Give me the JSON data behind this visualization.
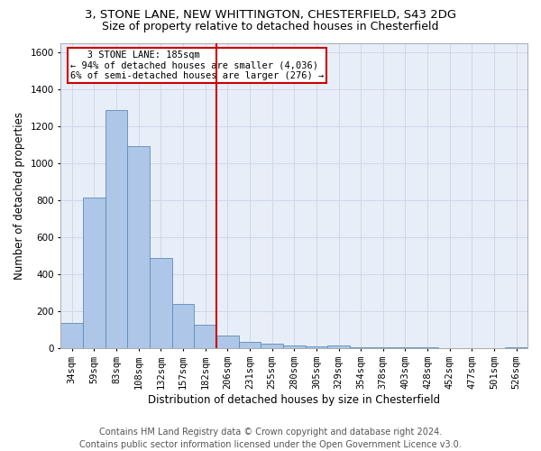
{
  "title1": "3, STONE LANE, NEW WHITTINGTON, CHESTERFIELD, S43 2DG",
  "title2": "Size of property relative to detached houses in Chesterfield",
  "xlabel": "Distribution of detached houses by size in Chesterfield",
  "ylabel": "Number of detached properties",
  "footer1": "Contains HM Land Registry data © Crown copyright and database right 2024.",
  "footer2": "Contains public sector information licensed under the Open Government Licence v3.0.",
  "annotation_line1": "   3 STONE LANE: 185sqm",
  "annotation_line2": "← 94% of detached houses are smaller (4,036)",
  "annotation_line3": "6% of semi-detached houses are larger (276) →",
  "property_size": 185,
  "bar_color": "#aec6e8",
  "bar_edge_color": "#5b8db8",
  "vline_color": "#cc0000",
  "annotation_box_color": "#cc0000",
  "bg_color": "#ffffff",
  "grid_color": "#d0d8e8",
  "ax_bg_color": "#e8eef8",
  "categories": [
    "34sqm",
    "59sqm",
    "83sqm",
    "108sqm",
    "132sqm",
    "157sqm",
    "182sqm",
    "206sqm",
    "231sqm",
    "255sqm",
    "280sqm",
    "305sqm",
    "329sqm",
    "354sqm",
    "378sqm",
    "403sqm",
    "428sqm",
    "452sqm",
    "477sqm",
    "501sqm",
    "526sqm"
  ],
  "values": [
    140,
    815,
    1285,
    1090,
    490,
    238,
    128,
    68,
    38,
    28,
    15,
    10,
    18,
    5,
    5,
    8,
    5,
    2,
    2,
    2,
    5
  ],
  "ylim": [
    0,
    1650
  ],
  "yticks": [
    0,
    200,
    400,
    600,
    800,
    1000,
    1200,
    1400,
    1600
  ],
  "vline_x": 6.5,
  "title_fontsize": 9.5,
  "subtitle_fontsize": 9,
  "axis_label_fontsize": 8.5,
  "tick_fontsize": 7.5,
  "annot_fontsize": 7.5,
  "footer_fontsize": 7
}
